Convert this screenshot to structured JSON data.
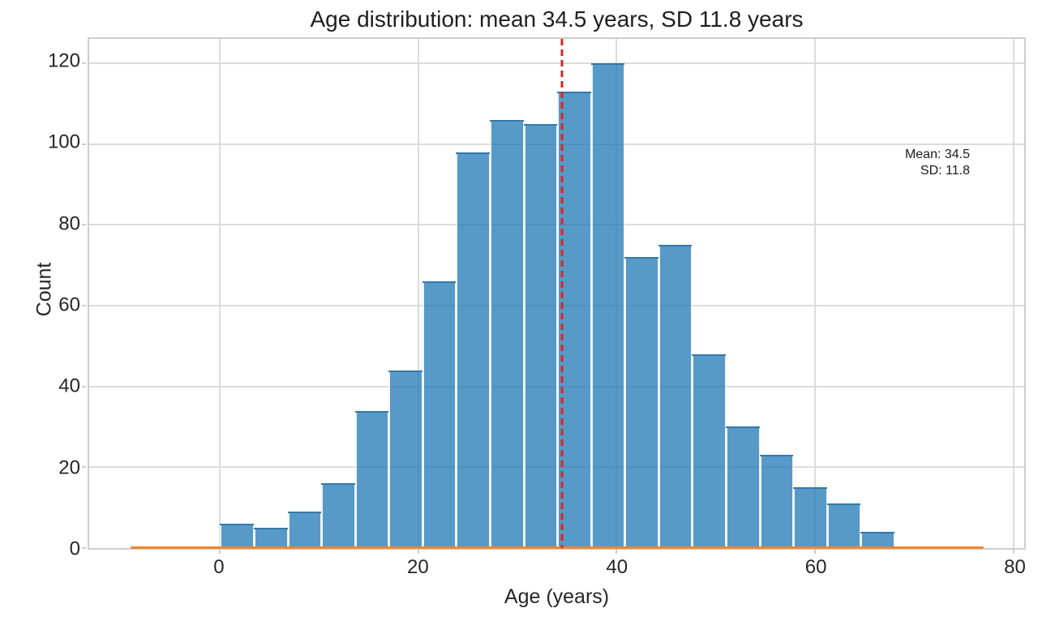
{
  "figure": {
    "title": "Age distribution: mean 34.5 years, SD 11.8 years",
    "xlabel": "Age (years)",
    "ylabel": "Count",
    "annotation": {
      "line1": "Mean: 34.5",
      "line2": "SD: 11.8"
    }
  },
  "chart_data": {
    "type": "bar",
    "subtype": "histogram",
    "title": "Age distribution: mean 34.5 years, SD 11.8 years",
    "xlabel": "Age (years)",
    "ylabel": "Count",
    "n_samples": 1000,
    "bin_edges": [
      0,
      3.4,
      6.8,
      10.2,
      13.6,
      17,
      20.4,
      23.8,
      27.2,
      30.6,
      34,
      37.4,
      40.8,
      44.2,
      47.6,
      51,
      54.4,
      57.8,
      61.2,
      64.6,
      68
    ],
    "counts": [
      6,
      5,
      9,
      16,
      34,
      44,
      66,
      98,
      106,
      105,
      113,
      120,
      72,
      75,
      48,
      30,
      23,
      15,
      11,
      4
    ],
    "xticks": [
      0,
      20,
      40,
      60,
      80
    ],
    "yticks": [
      0,
      20,
      40,
      60,
      80,
      100,
      120
    ],
    "xlim": [
      -13.2,
      81.1
    ],
    "ylim": [
      0,
      126
    ],
    "grid": "both",
    "legend": "none",
    "mean_line": {
      "x": 34.5,
      "label_value": 34.5,
      "style": "dashed",
      "color": "#d62728"
    },
    "sd_value": 11.8,
    "kde_line": {
      "x_start": -9,
      "x_end": 77,
      "y": 0.4,
      "color": "#f08630"
    },
    "colors": {
      "bar_fill": "rgba(31,119,180,0.75)",
      "bar_fill_flat": "#5799c7",
      "mean_line": "#d62728",
      "kde_line": "#f08630",
      "grid": "#dcdcdc",
      "frame": "#cdcdcd",
      "text": "#262626"
    }
  }
}
